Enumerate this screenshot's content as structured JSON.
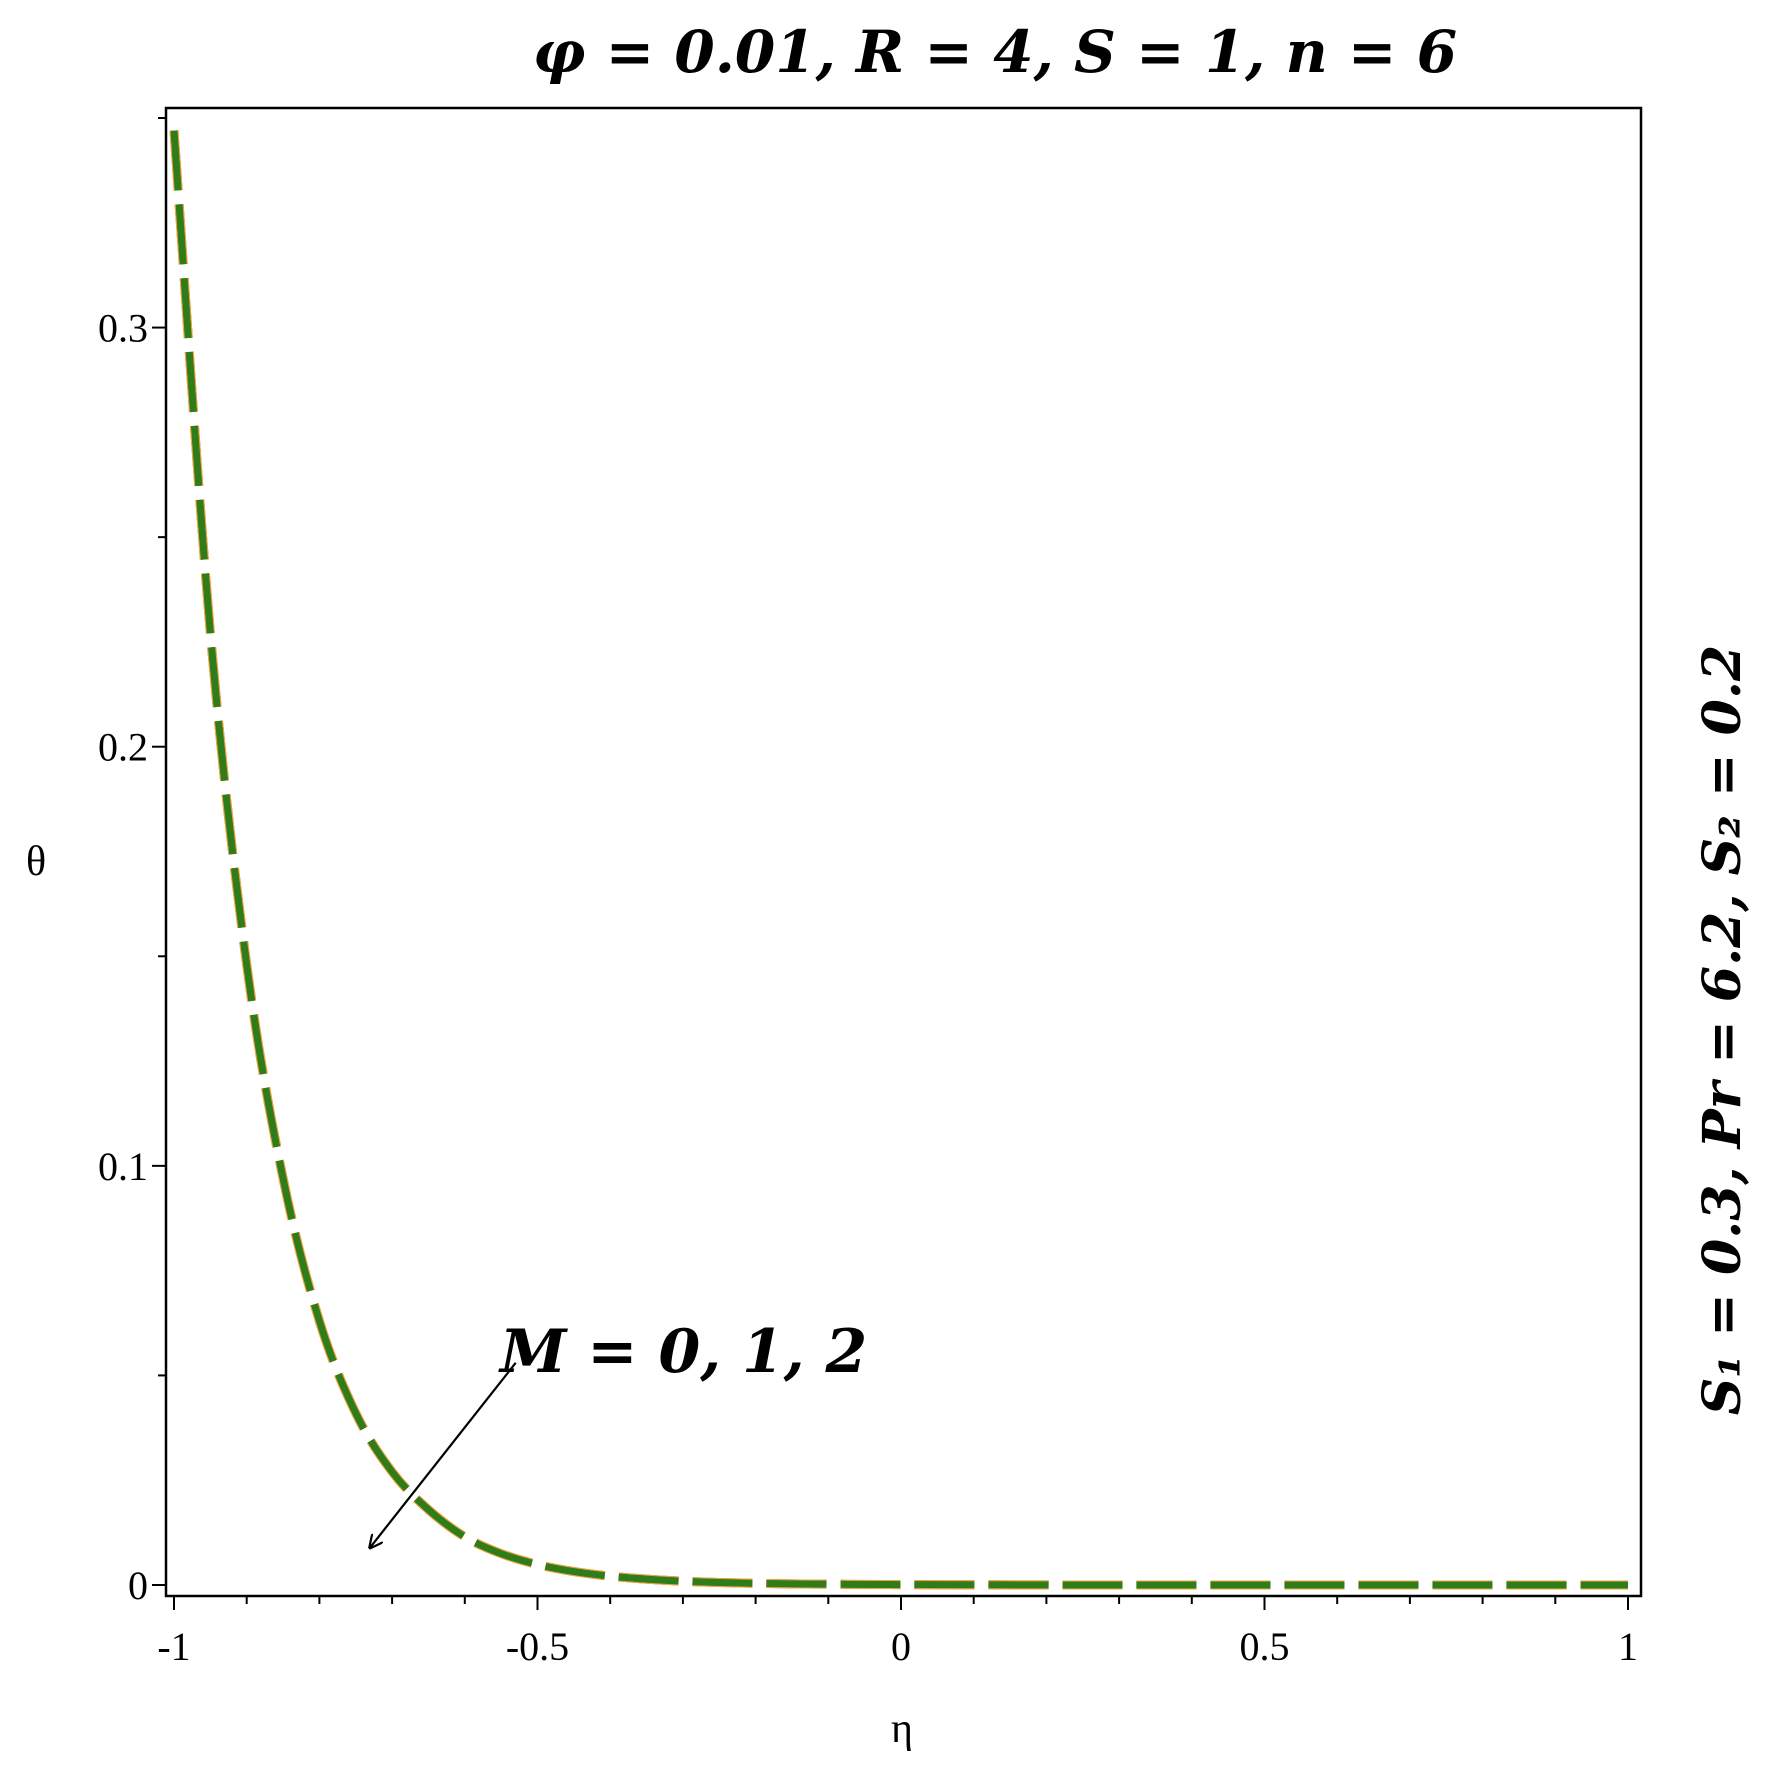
{
  "chart_data": {
    "type": "line",
    "title": "φ = 0.01, R = 4, S = 1, n = 6",
    "side_label": "S₁ = 0.3, Pr = 6.2, S₂ = 0.2",
    "xlabel": "η",
    "ylabel": "θ",
    "xlim": [
      -1,
      1
    ],
    "ylim": [
      0,
      0.35
    ],
    "x_ticks": [
      -1,
      -0.5,
      0,
      0.5,
      1
    ],
    "x_tick_labels": [
      "-1",
      "-0.5",
      "0",
      "0.5",
      "1"
    ],
    "y_ticks": [
      0,
      0.1,
      0.2,
      0.3
    ],
    "y_tick_labels": [
      "0",
      "0.1",
      "0.2",
      "0.3"
    ],
    "grid": false,
    "annotation": {
      "text": "M = 0, 1, 2",
      "arrow_from": [
        -0.53,
        0.053
      ],
      "arrow_to": [
        -0.73,
        0.009
      ]
    },
    "x": [
      -1.0,
      -0.95,
      -0.9,
      -0.85,
      -0.8,
      -0.75,
      -0.7,
      -0.65,
      -0.6,
      -0.55,
      -0.5,
      -0.45,
      -0.4,
      -0.35,
      -0.3,
      -0.25,
      -0.2,
      -0.1,
      0.0,
      0.25,
      0.5,
      0.75,
      1.0
    ],
    "series": [
      {
        "values": [
          0.347,
          0.227,
          0.148,
          0.097,
          0.063,
          0.041,
          0.027,
          0.018,
          0.0115,
          0.0075,
          0.0049,
          0.0032,
          0.0021,
          0.0014,
          0.0009,
          0.0006,
          0.0004,
          0.0002,
          0.0001,
          0.0,
          0.0,
          0.0,
          0.0
        ],
        "color": "#e8232a"
      },
      {
        "values": [
          0.347,
          0.227,
          0.148,
          0.097,
          0.063,
          0.041,
          0.027,
          0.018,
          0.0115,
          0.0075,
          0.0049,
          0.0032,
          0.0021,
          0.0014,
          0.0009,
          0.0006,
          0.0004,
          0.0002,
          0.0001,
          0.0,
          0.0,
          0.0,
          0.0
        ],
        "color": "#f2a93a"
      },
      {
        "values": [
          0.347,
          0.227,
          0.148,
          0.097,
          0.063,
          0.041,
          0.027,
          0.018,
          0.0115,
          0.0075,
          0.0049,
          0.0032,
          0.0021,
          0.0014,
          0.0009,
          0.0006,
          0.0004,
          0.0002,
          0.0001,
          0.0,
          0.0,
          0.0,
          0.0
        ],
        "color": "#2e7d1a"
      }
    ]
  }
}
